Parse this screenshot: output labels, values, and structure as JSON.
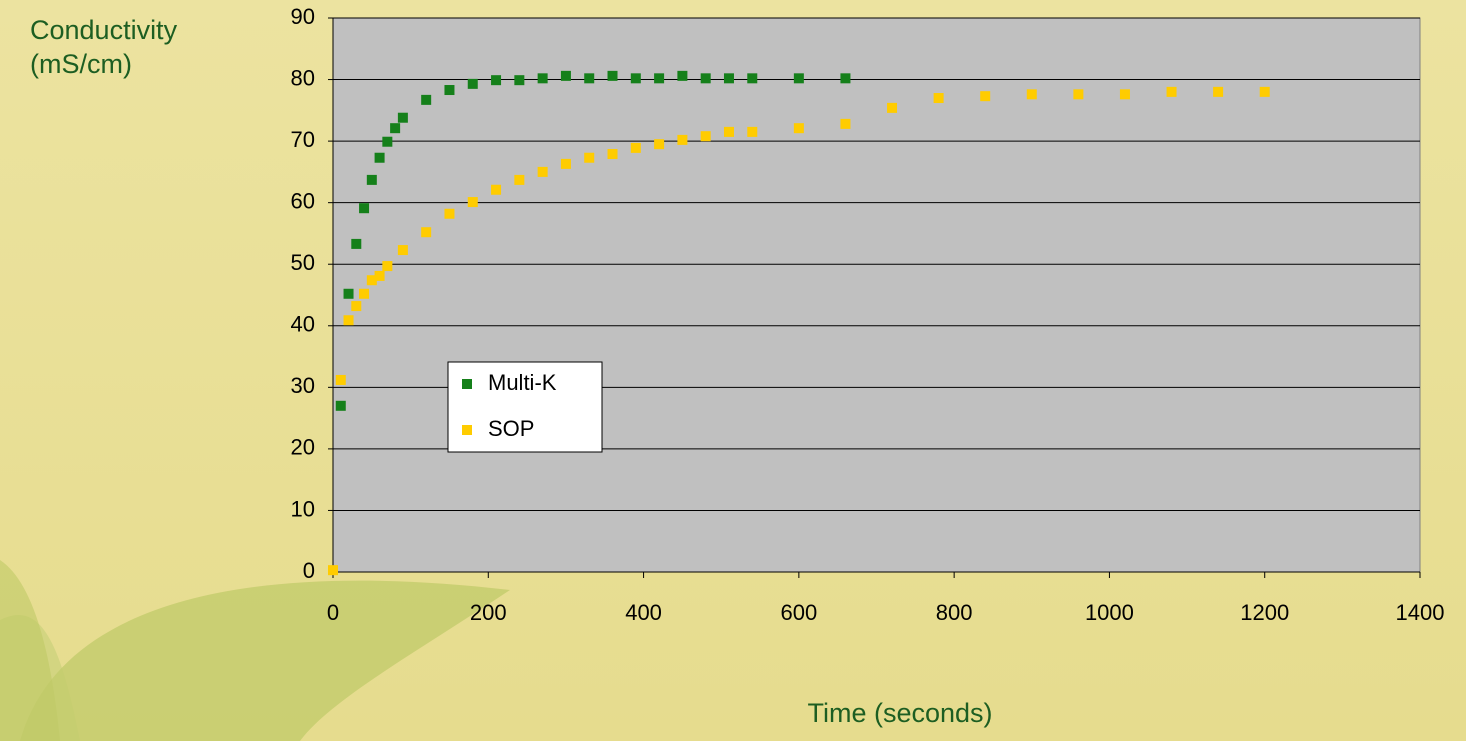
{
  "chart_data": {
    "type": "scatter",
    "x_label": "Time (seconds)",
    "y_label": "Conductivity (mS/cm)",
    "xlim": [
      0,
      1400
    ],
    "xticks": [
      0,
      200,
      400,
      600,
      800,
      1000,
      1200,
      1400
    ],
    "ylim": [
      0,
      90
    ],
    "yticks": [
      0,
      10,
      20,
      30,
      40,
      50,
      60,
      70,
      80,
      90
    ],
    "grid": true,
    "legend": "center-left",
    "series": [
      {
        "name": "Multi-K",
        "color": "#15801a",
        "x": [
          10,
          20,
          30,
          40,
          50,
          60,
          70,
          80,
          90,
          120,
          150,
          180,
          210,
          240,
          270,
          300,
          330,
          360,
          390,
          420,
          450,
          480,
          510,
          540,
          600,
          660
        ],
        "values": [
          27,
          45.2,
          53.3,
          59.1,
          63.7,
          67.3,
          69.9,
          72.1,
          73.8,
          76.7,
          78.3,
          79.3,
          79.9,
          79.9,
          80.2,
          80.6,
          80.2,
          80.6,
          80.2,
          80.2,
          80.6,
          80.2,
          80.2,
          80.2,
          80.2,
          80.2
        ]
      },
      {
        "name": "SOP",
        "color": "#ffcc00",
        "x": [
          0,
          10,
          20,
          30,
          40,
          50,
          60,
          70,
          90,
          120,
          150,
          180,
          210,
          240,
          270,
          300,
          330,
          360,
          390,
          420,
          450,
          480,
          510,
          540,
          600,
          660,
          720,
          780,
          840,
          900,
          960,
          1020,
          1080,
          1140,
          1200
        ],
        "values": [
          0.3,
          31.2,
          40.9,
          43.2,
          45.2,
          47.4,
          48.1,
          49.7,
          52.3,
          55.2,
          58.2,
          60.1,
          62.1,
          63.7,
          65.0,
          66.3,
          67.3,
          67.9,
          68.9,
          69.5,
          70.2,
          70.8,
          71.5,
          71.5,
          72.1,
          72.8,
          75.4,
          77.0,
          77.3,
          77.6,
          77.6,
          77.6,
          78.0,
          78.0,
          78.0
        ]
      }
    ]
  }
}
